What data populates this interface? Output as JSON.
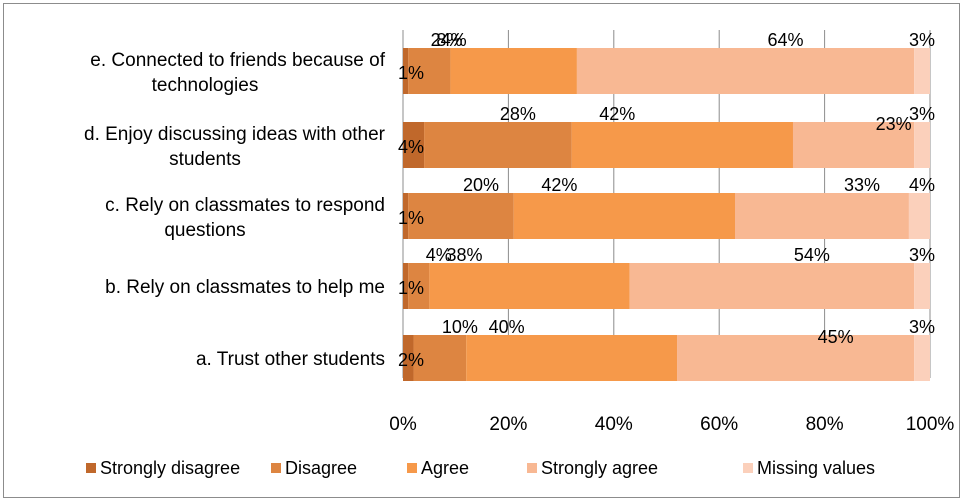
{
  "chart_data": {
    "type": "bar",
    "orientation": "horizontal",
    "stacked": "percent",
    "categories": [
      [
        "e. Connected to friends because of",
        "technologies"
      ],
      [
        "d. Enjoy discussing ideas with other",
        "students"
      ],
      [
        "c. Rely on classmates to respond",
        "questions"
      ],
      [
        "b. Rely on classmates to help me"
      ],
      [
        "a. Trust other students"
      ]
    ],
    "series": [
      {
        "name": "Strongly disagree",
        "color": "#c0682b",
        "values": [
          1,
          4,
          1,
          1,
          2
        ],
        "labels": [
          "1%",
          "4%",
          "1%",
          "1%",
          "2%"
        ]
      },
      {
        "name": "Disagree",
        "color": "#dd8541",
        "values": [
          8,
          28,
          20,
          4,
          10
        ],
        "labels": [
          "8%",
          "28%",
          "20%",
          "4%",
          "10%"
        ]
      },
      {
        "name": "Agree",
        "color": "#f6994a",
        "values": [
          24,
          42,
          42,
          38,
          40
        ],
        "labels": [
          "24%",
          "42%",
          "42%",
          "38%",
          "40%"
        ]
      },
      {
        "name": "Strongly agree",
        "color": "#f8b893",
        "values": [
          64,
          23,
          33,
          54,
          45
        ],
        "labels": [
          "64%",
          "23%",
          "33%",
          "54%",
          "45%"
        ]
      },
      {
        "name": "Missing values",
        "color": "#fbd0bb",
        "values": [
          3,
          3,
          4,
          3,
          3
        ],
        "labels": [
          "3%",
          "3%",
          "4%",
          "3%",
          "3%"
        ]
      }
    ],
    "x_ticks": [
      "0%",
      "20%",
      "40%",
      "60%",
      "80%",
      "100%"
    ],
    "xlim": [
      0,
      100
    ],
    "grid": "vertical",
    "legend": "bottom"
  }
}
